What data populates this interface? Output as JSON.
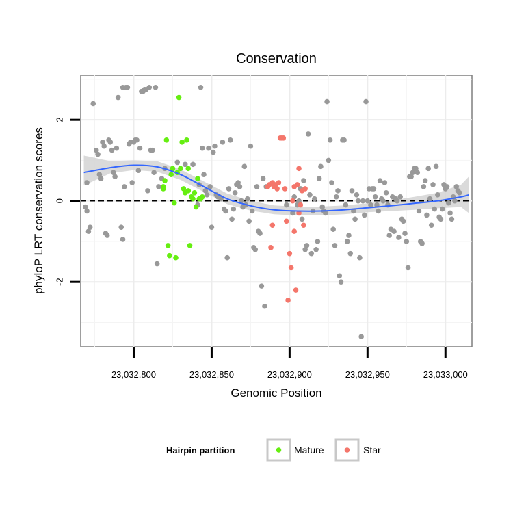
{
  "chart_data": {
    "type": "scatter",
    "title": "Conservation",
    "xlabel": "Genomic Position",
    "ylabel": "phyloP LRT conservation scores",
    "xlim": [
      23032766,
      23033017
    ],
    "ylim": [
      -3.6,
      3.1
    ],
    "x_ticks": [
      23032800,
      23032850,
      23032900,
      23032950,
      23033000
    ],
    "x_tick_labels": [
      "23,032,800",
      "23,032,850",
      "23,032,900",
      "23,032,950",
      "23,033,000"
    ],
    "y_ticks": [
      -2,
      0,
      2
    ],
    "y_tick_labels": [
      "-2",
      "0",
      "2"
    ],
    "grid": true,
    "reference_line": 0,
    "legend": {
      "title": "Hairpin partition",
      "placement": "bottom",
      "entries": [
        {
          "label": "Mature",
          "color": "#66ee11"
        },
        {
          "label": "Star",
          "color": "#f4766b"
        }
      ]
    },
    "colors": {
      "other": "#999999",
      "Mature": "#66ee11",
      "Star": "#f4766b",
      "smooth": "#3366ff",
      "band": "#d4d4d4"
    },
    "series": [
      {
        "name": "",
        "color": "#999999",
        "points": [
          [
            23032769,
            -0.15
          ],
          [
            23032770,
            -0.25
          ],
          [
            23032771,
            -0.75
          ],
          [
            23032772,
            -0.65
          ],
          [
            23032770,
            0.45
          ],
          [
            23032774,
            2.4
          ],
          [
            23032776,
            1.25
          ],
          [
            23032778,
            0.65
          ],
          [
            23032779,
            0.55
          ],
          [
            23032777,
            1.15
          ],
          [
            23032780,
            1.45
          ],
          [
            23032781,
            1.35
          ],
          [
            23032782,
            -0.8
          ],
          [
            23032783,
            -0.85
          ],
          [
            23032784,
            1.5
          ],
          [
            23032785,
            1.45
          ],
          [
            23032786,
            1.25
          ],
          [
            23032787,
            0.7
          ],
          [
            23032788,
            0.6
          ],
          [
            23032789,
            1.3
          ],
          [
            23032790,
            2.55
          ],
          [
            23032792,
            -0.65
          ],
          [
            23032793,
            -0.95
          ],
          [
            23032793,
            2.8
          ],
          [
            23032794,
            0.35
          ],
          [
            23032795,
            2.8
          ],
          [
            23032796,
            2.8
          ],
          [
            23032797,
            1.4
          ],
          [
            23032798,
            1.45
          ],
          [
            23032799,
            0.45
          ],
          [
            23032800,
            1.45
          ],
          [
            23032801,
            1.5
          ],
          [
            23032802,
            1.5
          ],
          [
            23032803,
            0.75
          ],
          [
            23032804,
            1.3
          ],
          [
            23032805,
            2.7
          ],
          [
            23032806,
            2.7
          ],
          [
            23032807,
            2.75
          ],
          [
            23032808,
            2.75
          ],
          [
            23032809,
            0.25
          ],
          [
            23032810,
            2.8
          ],
          [
            23032811,
            1.25
          ],
          [
            23032812,
            1.25
          ],
          [
            23032813,
            0.7
          ],
          [
            23032814,
            2.8
          ],
          [
            23032815,
            -1.55
          ],
          [
            23032816,
            0.35
          ],
          [
            23032818,
            0.55
          ],
          [
            23032820,
            0.8
          ],
          [
            23032828,
            0.95
          ],
          [
            23032833,
            0.9
          ],
          [
            23032838,
            0.9
          ],
          [
            23032841,
            -0.1
          ],
          [
            23032842,
            0.4
          ],
          [
            23032843,
            2.8
          ],
          [
            23032844,
            1.3
          ],
          [
            23032845,
            0.65
          ],
          [
            23032846,
            0.25
          ],
          [
            23032847,
            0.15
          ],
          [
            23032848,
            1.3
          ],
          [
            23032849,
            0.35
          ],
          [
            23032850,
            -0.65
          ],
          [
            23032851,
            1.2
          ],
          [
            23032852,
            1.35
          ],
          [
            23032853,
            0.15
          ],
          [
            23032854,
            0.1
          ],
          [
            23032855,
            0.1
          ],
          [
            23032856,
            0.05
          ],
          [
            23032857,
            1.45
          ],
          [
            23032858,
            -0.2
          ],
          [
            23032859,
            -0.25
          ],
          [
            23032860,
            -1.4
          ],
          [
            23032861,
            0.3
          ],
          [
            23032862,
            1.5
          ],
          [
            23032863,
            -0.45
          ],
          [
            23032864,
            -0.2
          ],
          [
            23032865,
            0.2
          ],
          [
            23032866,
            0.4
          ],
          [
            23032867,
            0.45
          ],
          [
            23032868,
            0.35
          ],
          [
            23032869,
            0.0
          ],
          [
            23032870,
            -0.15
          ],
          [
            23032871,
            0.85
          ],
          [
            23032872,
            -0.1
          ],
          [
            23032873,
            0.05
          ],
          [
            23032874,
            -0.5
          ],
          [
            23032875,
            1.35
          ],
          [
            23032876,
            -0.25
          ],
          [
            23032877,
            -1.15
          ],
          [
            23032878,
            -1.2
          ],
          [
            23032879,
            0.35
          ],
          [
            23032880,
            -0.75
          ],
          [
            23032881,
            -0.8
          ],
          [
            23032882,
            -2.1
          ],
          [
            23032883,
            0.55
          ],
          [
            23032884,
            -2.6
          ],
          [
            23032885,
            0.35
          ],
          [
            23032898,
            -0.1
          ],
          [
            23032902,
            -0.3
          ],
          [
            23032903,
            0.1
          ],
          [
            23032905,
            -0.1
          ],
          [
            23032906,
            0.0
          ],
          [
            23032907,
            0.3
          ],
          [
            23032908,
            -0.45
          ],
          [
            23032909,
            0.5
          ],
          [
            23032910,
            -1.2
          ],
          [
            23032911,
            -1.1
          ],
          [
            23032912,
            1.65
          ],
          [
            23032913,
            0.15
          ],
          [
            23032914,
            -1.3
          ],
          [
            23032915,
            -0.25
          ],
          [
            23032916,
            0.05
          ],
          [
            23032917,
            -1.2
          ],
          [
            23032918,
            -1.0
          ],
          [
            23032919,
            0.55
          ],
          [
            23032920,
            0.85
          ],
          [
            23032921,
            -0.15
          ],
          [
            23032922,
            -0.25
          ],
          [
            23032923,
            -0.3
          ],
          [
            23032924,
            2.45
          ],
          [
            23032925,
            1.0
          ],
          [
            23032926,
            1.5
          ],
          [
            23032927,
            0.45
          ],
          [
            23032928,
            -0.7
          ],
          [
            23032929,
            -1.1
          ],
          [
            23032930,
            0.1
          ],
          [
            23032931,
            0.25
          ],
          [
            23032932,
            -1.85
          ],
          [
            23032933,
            -2.0
          ],
          [
            23032934,
            1.5
          ],
          [
            23032935,
            1.5
          ],
          [
            23032936,
            -0.1
          ],
          [
            23032937,
            -1.0
          ],
          [
            23032938,
            -0.85
          ],
          [
            23032939,
            -1.3
          ],
          [
            23032940,
            0.25
          ],
          [
            23032941,
            -0.25
          ],
          [
            23032942,
            -0.45
          ],
          [
            23032943,
            0.15
          ],
          [
            23032944,
            0.0
          ],
          [
            23032945,
            -1.4
          ],
          [
            23032946,
            -3.35
          ],
          [
            23032947,
            0.0
          ],
          [
            23032948,
            -0.35
          ],
          [
            23032949,
            2.45
          ],
          [
            23032950,
            0.0
          ],
          [
            23032951,
            0.3
          ],
          [
            23032952,
            -0.1
          ],
          [
            23032953,
            0.3
          ],
          [
            23032954,
            0.3
          ],
          [
            23032955,
            0.1
          ],
          [
            23032956,
            -0.1
          ],
          [
            23032957,
            -0.25
          ],
          [
            23032958,
            0.5
          ],
          [
            23032959,
            0.05
          ],
          [
            23032960,
            0.0
          ],
          [
            23032961,
            0.45
          ],
          [
            23032962,
            0.2
          ],
          [
            23032963,
            -0.1
          ],
          [
            23032964,
            -0.85
          ],
          [
            23032965,
            -0.7
          ],
          [
            23032966,
            0.1
          ],
          [
            23032967,
            -0.75
          ],
          [
            23032968,
            0.05
          ],
          [
            23032969,
            0.0
          ],
          [
            23032970,
            -0.9
          ],
          [
            23032971,
            0.1
          ],
          [
            23032972,
            -0.45
          ],
          [
            23032973,
            -0.5
          ],
          [
            23032974,
            -0.8
          ],
          [
            23032975,
            -1.0
          ],
          [
            23032976,
            -1.65
          ],
          [
            23032977,
            0.6
          ],
          [
            23032978,
            0.6
          ],
          [
            23032979,
            0.7
          ],
          [
            23032980,
            0.8
          ],
          [
            23032981,
            0.8
          ],
          [
            23032982,
            0.7
          ],
          [
            23032983,
            -0.25
          ],
          [
            23032984,
            -1.0
          ],
          [
            23032985,
            -1.05
          ],
          [
            23032986,
            0.35
          ],
          [
            23032987,
            0.5
          ],
          [
            23032988,
            -0.35
          ],
          [
            23032989,
            0.8
          ],
          [
            23032990,
            0.05
          ],
          [
            23032991,
            -0.6
          ],
          [
            23032992,
            0.4
          ],
          [
            23032993,
            -0.2
          ],
          [
            23032994,
            0.85
          ],
          [
            23032995,
            0.15
          ],
          [
            23032996,
            -0.4
          ],
          [
            23032997,
            -0.45
          ],
          [
            23032998,
            -0.2
          ],
          [
            23032999,
            0.4
          ],
          [
            23033000,
            0.3
          ],
          [
            23033001,
            0.35
          ],
          [
            23033002,
            -0.05
          ],
          [
            23033003,
            -0.3
          ],
          [
            23033004,
            -0.45
          ],
          [
            23033005,
            0.1
          ],
          [
            23033006,
            0.0
          ],
          [
            23033007,
            0.35
          ],
          [
            23033008,
            0.25
          ],
          [
            23033009,
            0.2
          ]
        ]
      },
      {
        "name": "Mature",
        "color": "#66ee11",
        "points": [
          [
            23032819,
            0.3
          ],
          [
            23032820,
            0.5
          ],
          [
            23032821,
            1.5
          ],
          [
            23032822,
            -1.1
          ],
          [
            23032823,
            -1.35
          ],
          [
            23032824,
            0.65
          ],
          [
            23032825,
            0.8
          ],
          [
            23032826,
            -0.05
          ],
          [
            23032827,
            -1.4
          ],
          [
            23032828,
            0.7
          ],
          [
            23032829,
            2.55
          ],
          [
            23032830,
            0.8
          ],
          [
            23032831,
            1.45
          ],
          [
            23032832,
            0.3
          ],
          [
            23032833,
            0.2
          ],
          [
            23032834,
            1.5
          ],
          [
            23032835,
            0.8
          ],
          [
            23032836,
            -1.1
          ],
          [
            23032837,
            0.1
          ],
          [
            23032838,
            0.05
          ],
          [
            23032839,
            0.2
          ],
          [
            23032840,
            -0.15
          ],
          [
            23032841,
            0.55
          ],
          [
            23032842,
            0.05
          ],
          [
            23032843,
            0.05
          ],
          [
            23032844,
            0.1
          ],
          [
            23032819,
            0.35
          ],
          [
            23032835,
            0.25
          ]
        ]
      },
      {
        "name": "Star",
        "color": "#f4766b",
        "points": [
          [
            23032886,
            0.35
          ],
          [
            23032887,
            0.4
          ],
          [
            23032888,
            -1.15
          ],
          [
            23032889,
            -0.6
          ],
          [
            23032890,
            0.35
          ],
          [
            23032891,
            0.4
          ],
          [
            23032892,
            0.3
          ],
          [
            23032893,
            0.45
          ],
          [
            23032894,
            1.55
          ],
          [
            23032895,
            1.55
          ],
          [
            23032896,
            1.55
          ],
          [
            23032897,
            0.3
          ],
          [
            23032898,
            -0.5
          ],
          [
            23032899,
            -2.45
          ],
          [
            23032900,
            -1.3
          ],
          [
            23032901,
            -1.65
          ],
          [
            23032902,
            0.0
          ],
          [
            23032903,
            -0.75
          ],
          [
            23032904,
            -2.2
          ],
          [
            23032905,
            0.4
          ],
          [
            23032906,
            0.8
          ],
          [
            23032907,
            -0.1
          ],
          [
            23032908,
            0.25
          ],
          [
            23032909,
            -0.6
          ],
          [
            23032910,
            0.3
          ],
          [
            23032889,
            0.45
          ],
          [
            23032903,
            0.35
          ],
          [
            23032906,
            -0.3
          ]
        ]
      }
    ],
    "smooth": {
      "x": [
        23032768,
        23032785,
        23032800,
        23032815,
        23032830,
        23032845,
        23032860,
        23032875,
        23032890,
        23032905,
        23032920,
        23032935,
        23032950,
        23032965,
        23032980,
        23032995,
        23033010,
        23033015
      ],
      "y": [
        0.7,
        0.82,
        0.88,
        0.84,
        0.65,
        0.35,
        0.05,
        -0.12,
        -0.22,
        -0.25,
        -0.25,
        -0.22,
        -0.17,
        -0.12,
        -0.06,
        0.0,
        0.1,
        0.15
      ],
      "ci_low": [
        0.38,
        0.68,
        0.76,
        0.72,
        0.52,
        0.22,
        -0.08,
        -0.24,
        -0.33,
        -0.36,
        -0.36,
        -0.33,
        -0.28,
        -0.25,
        -0.22,
        -0.18,
        -0.15,
        -0.3
      ],
      "ci_high": [
        1.12,
        0.98,
        1.0,
        0.98,
        0.78,
        0.48,
        0.18,
        0.0,
        -0.11,
        -0.14,
        -0.14,
        -0.11,
        -0.06,
        0.01,
        0.1,
        0.2,
        0.4,
        0.6
      ]
    }
  }
}
